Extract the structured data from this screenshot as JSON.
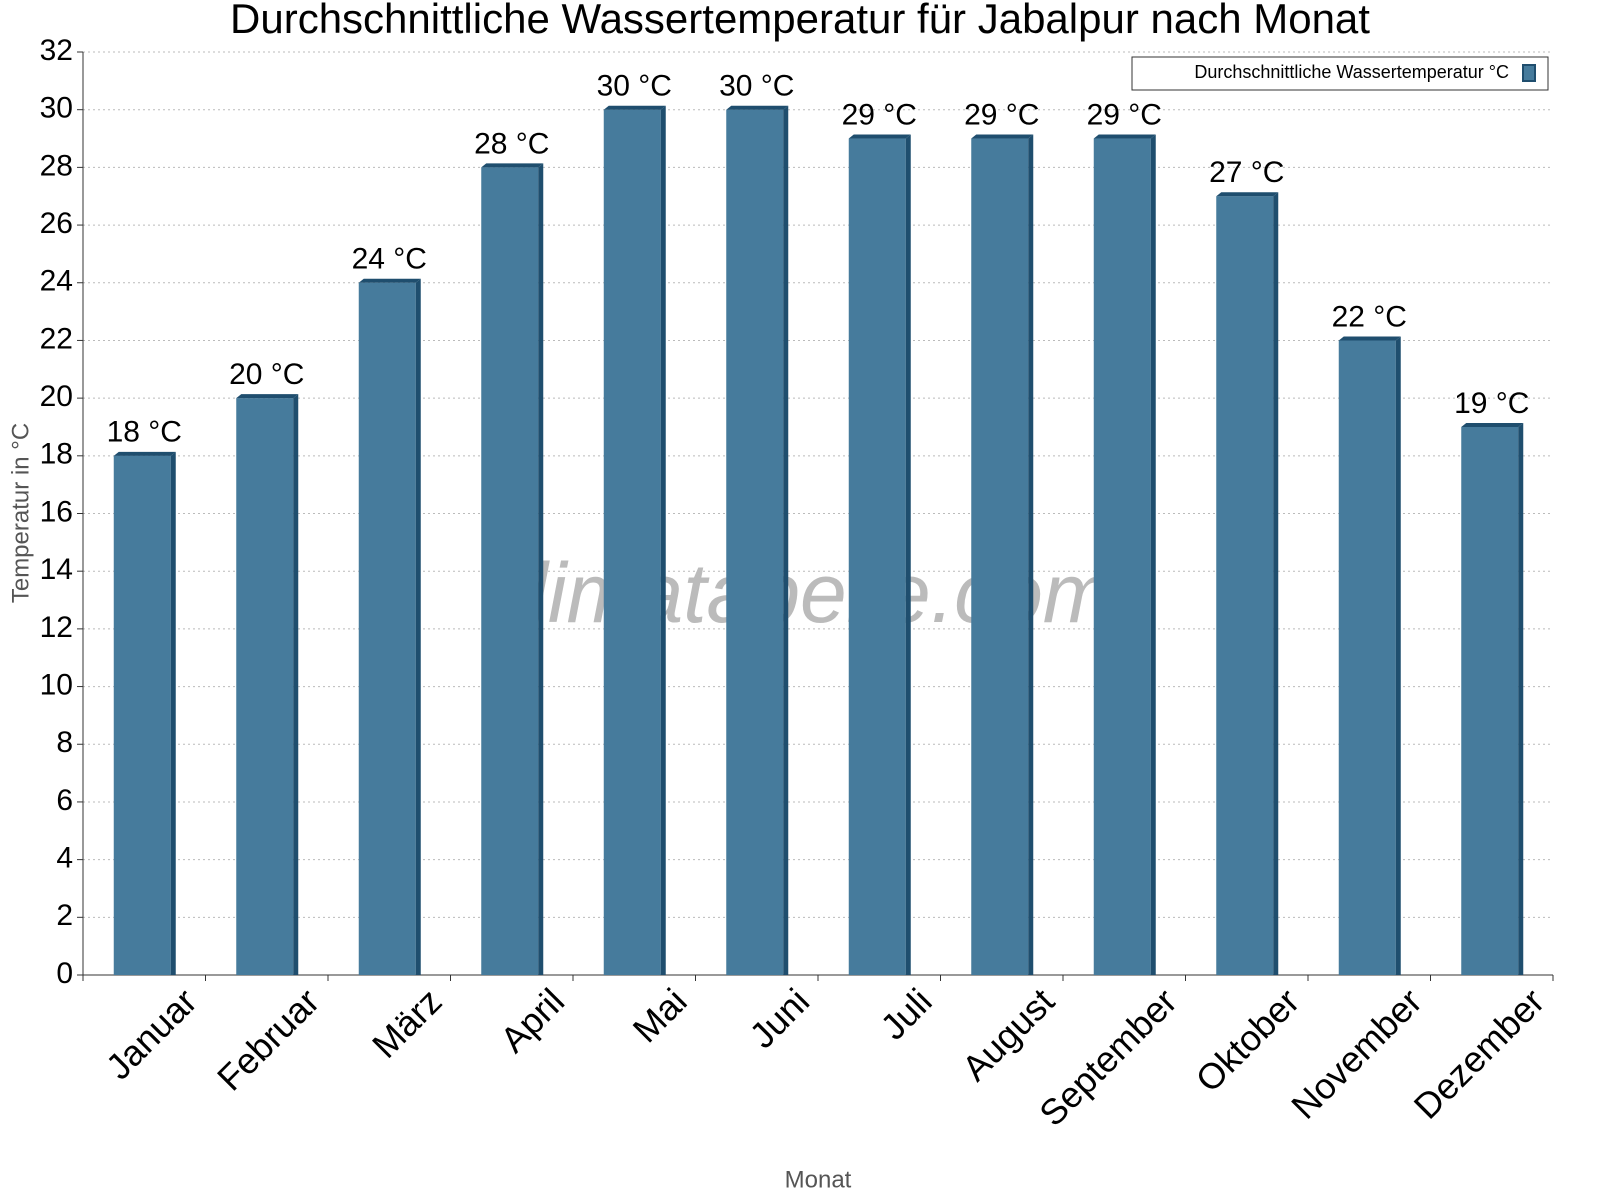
{
  "chart_data": {
    "type": "bar",
    "title": "Durchschnittliche Wassertemperatur für Jabalpur nach Monat",
    "watermark": "klimatabelle.com",
    "y_label": "Temperatur in °C",
    "x_label": "Monat",
    "categories": [
      "Januar",
      "Februar",
      "März",
      "April",
      "Mai",
      "Juni",
      "Juli",
      "August",
      "September",
      "Oktober",
      "November",
      "Dezember"
    ],
    "series": [
      {
        "name": "Durchschnittliche Wassertemperatur °C",
        "color": "#467b9c",
        "values": [
          18,
          20,
          24,
          28,
          30,
          30,
          29,
          29,
          29,
          27,
          22,
          19
        ],
        "value_labels": [
          "18 °C",
          "20 °C",
          "24 °C",
          "28 °C",
          "30 °C",
          "30 °C",
          "29 °C",
          "29 °C",
          "29 °C",
          "27 °C",
          "22 °C",
          "19 °C"
        ]
      }
    ],
    "ylim": [
      0,
      32
    ],
    "yticks": [
      0,
      2,
      4,
      6,
      8,
      10,
      12,
      14,
      16,
      18,
      20,
      22,
      24,
      26,
      28,
      30,
      32
    ],
    "grid": true,
    "legend": "top-right"
  }
}
